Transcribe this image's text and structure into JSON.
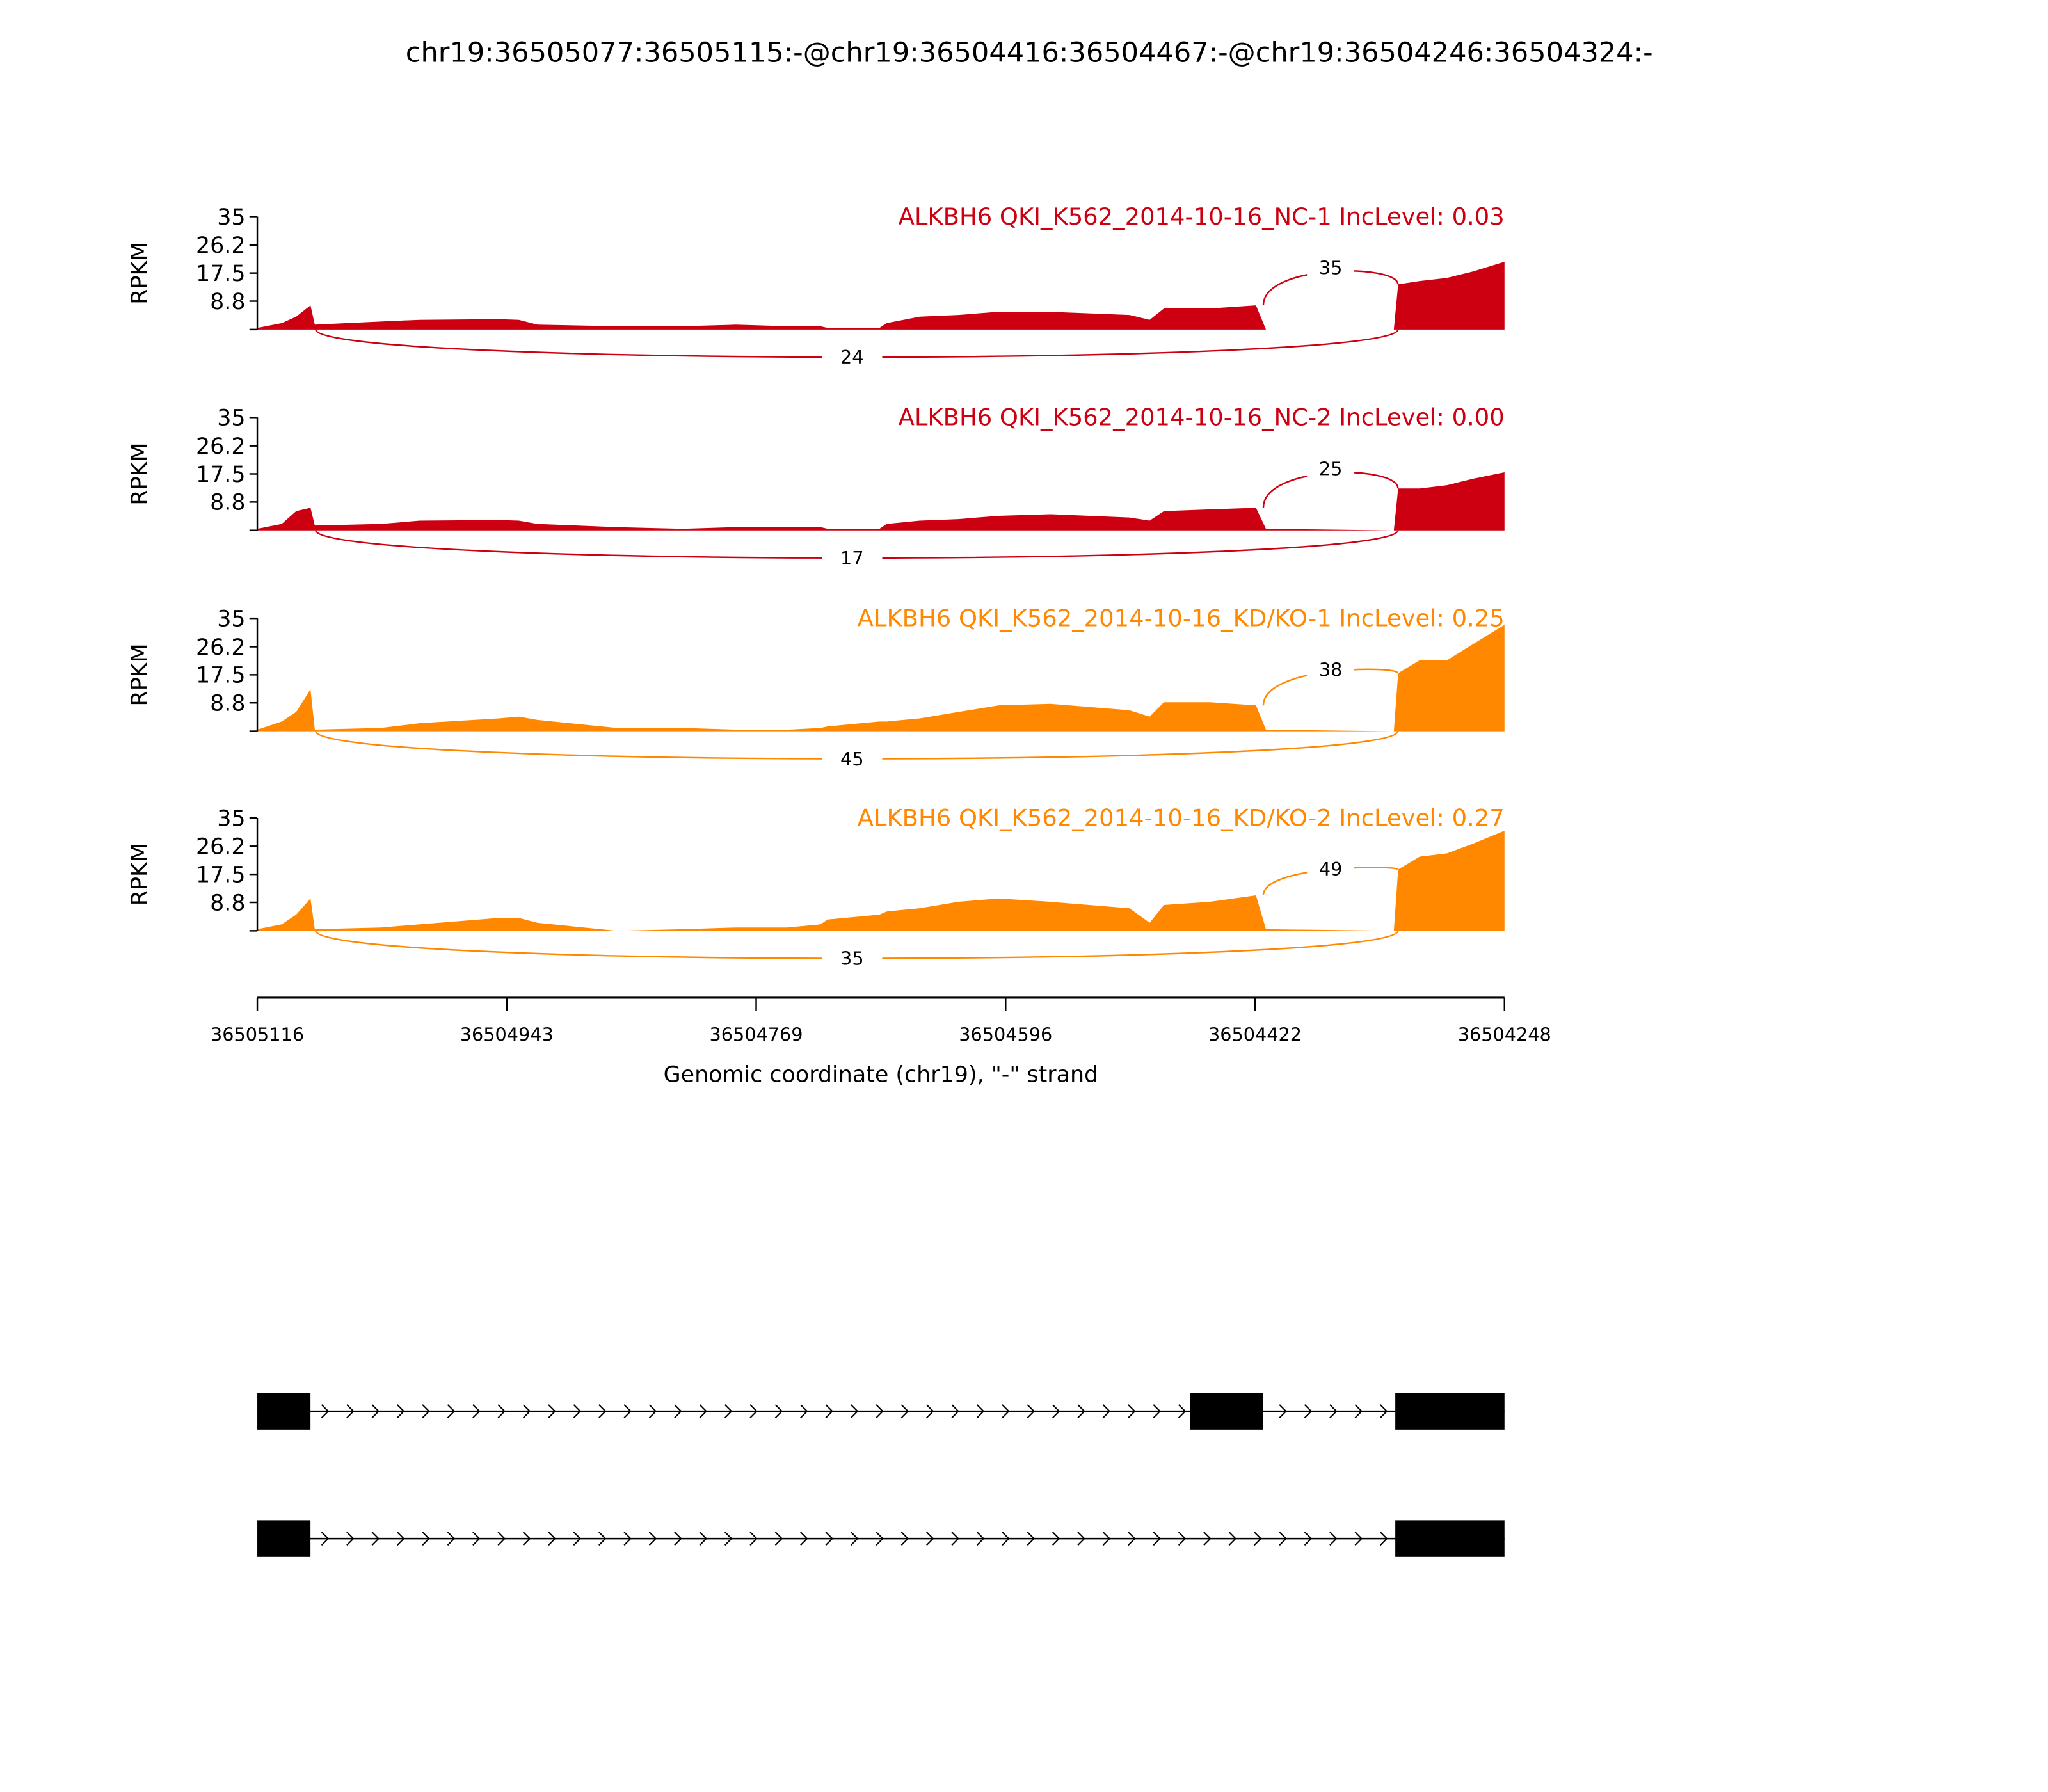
{
  "title": "chr19:36505077:36505115:-@chr19:36504416:36504467:-@chr19:36504246:36504324:-",
  "chart_data": {
    "type": "area",
    "title": "chr19:36505077:36505115:-@chr19:36504416:36504467:-@chr19:36504246:36504324:-",
    "xlabel": "Genomic coordinate (chr19), \"-\" strand",
    "ylabel": "RPKM",
    "x_start": 36505116,
    "x_end": 36504248,
    "xticks": [
      "36505116",
      "36504943",
      "36504769",
      "36504596",
      "36504422",
      "36504248"
    ],
    "yticks": [
      "35",
      "26.2",
      "17.5",
      "8.8"
    ],
    "ylim": [
      0,
      35
    ],
    "offsets_bp": [
      0,
      17,
      27,
      37,
      40,
      86,
      113,
      168,
      182,
      195,
      250,
      296,
      333,
      369,
      392,
      397,
      433,
      438,
      461,
      488,
      516,
      552,
      607,
      621,
      631,
      663,
      695,
      702,
      791,
      794,
      809,
      828,
      846,
      868
    ],
    "tracks": [
      {
        "label": "ALKBH6 QKI_K562_2014-10-16_NC-1 IncLevel: 0.03",
        "color": "#cc0011",
        "values": [
          0.5,
          2,
          4,
          7.5,
          1.5,
          2.5,
          3,
          3.2,
          3,
          1.5,
          1,
          1,
          1.5,
          1,
          1,
          0.5,
          0.5,
          2,
          4,
          4.5,
          5.5,
          5.5,
          4.5,
          3,
          6.5,
          6.5,
          7.5,
          0,
          0,
          14,
          15,
          16,
          18,
          21
        ],
        "junction_inclusion": "35",
        "junction_skip": "24"
      },
      {
        "label": "ALKBH6 QKI_K562_2014-10-16_NC-2 IncLevel: 0.00",
        "color": "#cc0011",
        "values": [
          0.5,
          2,
          6,
          7,
          1.5,
          2,
          3,
          3.2,
          3,
          2,
          1,
          0.5,
          1,
          1,
          1,
          0.5,
          0.5,
          2,
          3,
          3.5,
          4.5,
          5,
          4,
          3,
          6,
          6.5,
          7,
          0.5,
          0,
          13,
          13,
          14,
          16,
          18
        ],
        "junction_inclusion": "25",
        "junction_skip": "17"
      },
      {
        "label": "ALKBH6 QKI_K562_2014-10-16_KD/KO-1 IncLevel: 0.25",
        "color": "#ff8800",
        "values": [
          0.5,
          3,
          6,
          13,
          0.5,
          1,
          2.5,
          4,
          4.5,
          3.5,
          1,
          1,
          0.5,
          0.5,
          1,
          1.5,
          3,
          3,
          4,
          6,
          8,
          8.5,
          6.5,
          4.5,
          9,
          9,
          8,
          0.5,
          0,
          18,
          22,
          22,
          27,
          33
        ],
        "junction_inclusion": "38",
        "junction_skip": "45"
      },
      {
        "label": "ALKBH6 QKI_K562_2014-10-16_KD/KO-2 IncLevel: 0.27",
        "color": "#ff8800",
        "values": [
          0.5,
          2,
          5,
          10,
          0.5,
          1,
          2,
          4,
          4,
          2.5,
          0,
          0.5,
          1,
          1,
          2,
          3.5,
          5,
          6,
          7,
          9,
          10,
          9,
          7,
          2.5,
          8,
          9,
          11,
          0.5,
          0,
          19,
          23,
          24,
          27,
          31
        ],
        "junction_inclusion": "49",
        "junction_skip": "35"
      }
    ],
    "isoforms": [
      {
        "exons_bp": [
          [
            0,
            37
          ],
          [
            649,
            700
          ],
          [
            792,
            868
          ]
        ]
      },
      {
        "exons_bp": [
          [
            0,
            37
          ],
          [
            792,
            868
          ]
        ]
      }
    ]
  }
}
